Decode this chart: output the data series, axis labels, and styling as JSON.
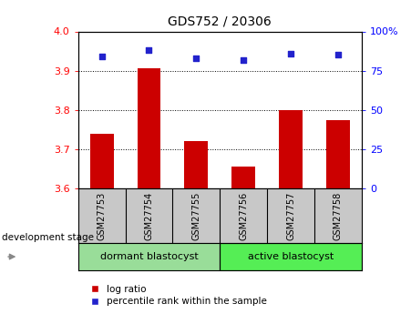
{
  "title": "GDS752 / 20306",
  "samples": [
    "GSM27753",
    "GSM27754",
    "GSM27755",
    "GSM27756",
    "GSM27757",
    "GSM27758"
  ],
  "log_ratio": [
    3.74,
    3.905,
    3.72,
    3.655,
    3.8,
    3.775
  ],
  "percentile_rank": [
    84,
    88,
    83,
    82,
    86,
    85
  ],
  "ylim_left": [
    3.6,
    4.0
  ],
  "ylim_right": [
    0,
    100
  ],
  "yticks_left": [
    3.6,
    3.7,
    3.8,
    3.9,
    4.0
  ],
  "yticks_right": [
    0,
    25,
    50,
    75,
    100
  ],
  "bar_color": "#cc0000",
  "dot_color": "#2222cc",
  "grid_ticks": [
    3.7,
    3.8,
    3.9
  ],
  "group_labels": [
    "dormant blastocyst",
    "active blastocyst"
  ],
  "group_colors": [
    "#99dd99",
    "#55ee55"
  ],
  "stage_label": "development stage",
  "legend_items": [
    "log ratio",
    "percentile rank within the sample"
  ],
  "legend_colors": [
    "#cc0000",
    "#2222cc"
  ],
  "bg_color_plot": "#ffffff",
  "bg_color_xtick": "#c8c8c8"
}
